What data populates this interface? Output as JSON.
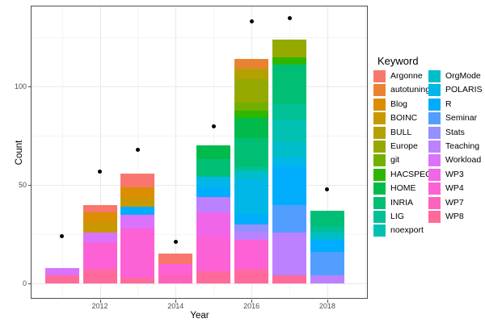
{
  "chart_data": {
    "type": "bar",
    "stacked": true,
    "title": "",
    "xlabel": "Year",
    "ylabel": "Count",
    "legend_title": "Keyword",
    "x_tick_years": [
      2012,
      2014,
      2016,
      2018
    ],
    "x_tick_labels": [
      "2012",
      "2014",
      "2016",
      "2018"
    ],
    "x_minor_years": [
      2011,
      2013,
      2015,
      2017,
      2019
    ],
    "y_ticks": [
      0,
      50,
      100
    ],
    "y_minor_ticks": [
      25,
      75,
      125
    ],
    "ylim": [
      0,
      141
    ],
    "grid": "on",
    "legend_position": "right",
    "keywords": [
      {
        "name": "Argonne",
        "color": "#F8766D"
      },
      {
        "name": "autotuning",
        "color": "#EA8331"
      },
      {
        "name": "Blog",
        "color": "#DB8E00"
      },
      {
        "name": "BOINC",
        "color": "#C99800"
      },
      {
        "name": "BULL",
        "color": "#B2A100"
      },
      {
        "name": "Europe",
        "color": "#95A900"
      },
      {
        "name": "git",
        "color": "#72B000"
      },
      {
        "name": "HACSPECIS",
        "color": "#2FB600"
      },
      {
        "name": "HOME",
        "color": "#00BB4B"
      },
      {
        "name": "INRIA",
        "color": "#00BF74"
      },
      {
        "name": "LIG",
        "color": "#00C096"
      },
      {
        "name": "noexport",
        "color": "#00C1B2"
      },
      {
        "name": "OrgMode",
        "color": "#00BDCC"
      },
      {
        "name": "POLARIS",
        "color": "#00B7E8"
      },
      {
        "name": "R",
        "color": "#00ACFC"
      },
      {
        "name": "Seminar",
        "color": "#529EFF"
      },
      {
        "name": "Stats",
        "color": "#9590FF"
      },
      {
        "name": "Teaching",
        "color": "#BC81FF"
      },
      {
        "name": "Workload",
        "color": "#DB72FB"
      },
      {
        "name": "WP3",
        "color": "#F166E8"
      },
      {
        "name": "WP4",
        "color": "#FC61D5"
      },
      {
        "name": "WP7",
        "color": "#FF62BE"
      },
      {
        "name": "WP8",
        "color": "#FF6A9A"
      }
    ],
    "legend_columns": [
      [
        "Argonne",
        "autotuning",
        "Blog",
        "BOINC",
        "BULL",
        "Europe",
        "git",
        "HACSPECIS",
        "HOME",
        "INRIA",
        "LIG",
        "noexport"
      ],
      [
        "OrgMode",
        "POLARIS",
        "R",
        "Seminar",
        "Stats",
        "Teaching",
        "Workload",
        "WP3",
        "WP4",
        "WP7",
        "WP8"
      ]
    ],
    "bars": [
      {
        "year": 2011,
        "total": 8,
        "segments": [
          {
            "keyword": "Workload",
            "value": 4
          },
          {
            "keyword": "WP8",
            "value": 4
          }
        ]
      },
      {
        "year": 2012,
        "total": 40,
        "segments": [
          {
            "keyword": "Argonne",
            "value": 4
          },
          {
            "keyword": "Blog",
            "value": 5
          },
          {
            "keyword": "BOINC",
            "value": 5
          },
          {
            "keyword": "Workload",
            "value": 5
          },
          {
            "keyword": "WP4",
            "value": 14
          },
          {
            "keyword": "WP8",
            "value": 7
          }
        ]
      },
      {
        "year": 2013,
        "total": 56,
        "segments": [
          {
            "keyword": "Argonne",
            "value": 7
          },
          {
            "keyword": "Blog",
            "value": 5
          },
          {
            "keyword": "BOINC",
            "value": 5
          },
          {
            "keyword": "R",
            "value": 4
          },
          {
            "keyword": "Workload",
            "value": 7
          },
          {
            "keyword": "WP4",
            "value": 25
          },
          {
            "keyword": "WP8",
            "value": 3
          }
        ]
      },
      {
        "year": 2014,
        "total": 15,
        "segments": [
          {
            "keyword": "Argonne",
            "value": 5
          },
          {
            "keyword": "WP4",
            "value": 5
          },
          {
            "keyword": "WP7",
            "value": 5
          }
        ]
      },
      {
        "year": 2015,
        "total": 70,
        "segments": [
          {
            "keyword": "HOME",
            "value": 7
          },
          {
            "keyword": "INRIA",
            "value": 9
          },
          {
            "keyword": "POLARIS",
            "value": 5
          },
          {
            "keyword": "R",
            "value": 5
          },
          {
            "keyword": "Teaching",
            "value": 8
          },
          {
            "keyword": "WP3",
            "value": 12
          },
          {
            "keyword": "WP4",
            "value": 18
          },
          {
            "keyword": "WP8",
            "value": 6
          }
        ]
      },
      {
        "year": 2016,
        "total": 114,
        "segments": [
          {
            "keyword": "autotuning",
            "value": 5
          },
          {
            "keyword": "BULL",
            "value": 5
          },
          {
            "keyword": "Europe",
            "value": 12
          },
          {
            "keyword": "git",
            "value": 4
          },
          {
            "keyword": "HACSPECIS",
            "value": 4
          },
          {
            "keyword": "HOME",
            "value": 10
          },
          {
            "keyword": "INRIA",
            "value": 15
          },
          {
            "keyword": "LIG",
            "value": 2
          },
          {
            "keyword": "OrgMode",
            "value": 4
          },
          {
            "keyword": "POLARIS",
            "value": 18
          },
          {
            "keyword": "R",
            "value": 5
          },
          {
            "keyword": "Stats",
            "value": 4
          },
          {
            "keyword": "Teaching",
            "value": 4
          },
          {
            "keyword": "WP4",
            "value": 15
          },
          {
            "keyword": "WP8",
            "value": 7
          }
        ]
      },
      {
        "year": 2017,
        "total": 124,
        "segments": [
          {
            "keyword": "Europe",
            "value": 9
          },
          {
            "keyword": "HACSPECIS",
            "value": 4
          },
          {
            "keyword": "INRIA",
            "value": 20
          },
          {
            "keyword": "LIG",
            "value": 8
          },
          {
            "keyword": "noexport",
            "value": 11
          },
          {
            "keyword": "OrgMode",
            "value": 8
          },
          {
            "keyword": "POLARIS",
            "value": 5
          },
          {
            "keyword": "R",
            "value": 19
          },
          {
            "keyword": "Seminar",
            "value": 14
          },
          {
            "keyword": "Teaching",
            "value": 22
          },
          {
            "keyword": "WP8",
            "value": 4
          }
        ]
      },
      {
        "year": 2018,
        "total": 37,
        "segments": [
          {
            "keyword": "INRIA",
            "value": 8
          },
          {
            "keyword": "LIG",
            "value": 3
          },
          {
            "keyword": "OrgMode",
            "value": 4
          },
          {
            "keyword": "R",
            "value": 6
          },
          {
            "keyword": "Seminar",
            "value": 12
          },
          {
            "keyword": "Teaching",
            "value": 4
          }
        ]
      }
    ],
    "points": [
      {
        "year": 2011,
        "value": 24
      },
      {
        "year": 2012,
        "value": 57
      },
      {
        "year": 2013,
        "value": 68
      },
      {
        "year": 2014,
        "value": 21
      },
      {
        "year": 2015,
        "value": 80
      },
      {
        "year": 2016,
        "value": 133
      },
      {
        "year": 2017,
        "value": 135
      },
      {
        "year": 2018,
        "value": 48
      }
    ]
  }
}
